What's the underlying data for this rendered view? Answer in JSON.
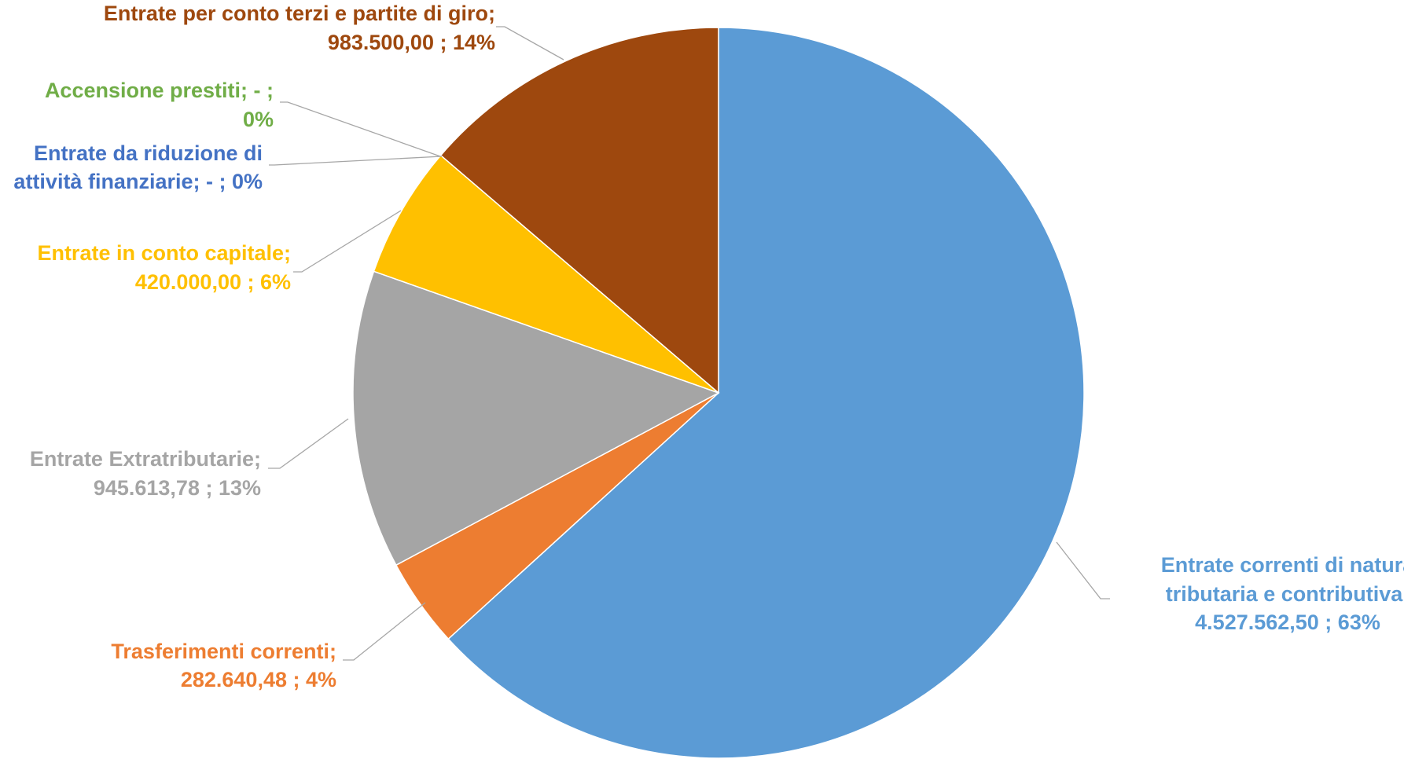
{
  "chart_data": {
    "type": "pie",
    "start_angle_deg": 0,
    "direction": "clockwise",
    "slices": [
      {
        "name": "Entrate correnti di natura tributaria e contributiva",
        "value": 4527562.5,
        "percent": 63,
        "color": "#5B9BD5",
        "label_lines": [
          "Entrate correnti di natura",
          "tributaria e contributiva;",
          "4.527.562,50 ; 63%"
        ]
      },
      {
        "name": "Trasferimenti correnti",
        "value": 282640.48,
        "percent": 4,
        "color": "#ED7D31",
        "label_lines": [
          "Trasferimenti correnti;",
          "282.640,48 ; 4%"
        ]
      },
      {
        "name": "Entrate Extratributarie",
        "value": 945613.78,
        "percent": 13,
        "color": "#A5A5A5",
        "label_lines": [
          "Entrate Extratributarie;",
          "945.613,78 ; 13%"
        ]
      },
      {
        "name": "Entrate in conto capitale",
        "value": 420000.0,
        "percent": 6,
        "color": "#FFC000",
        "label_lines": [
          "Entrate in conto capitale;",
          "420.000,00 ; 6%"
        ]
      },
      {
        "name": "Entrate da riduzione di attività finanziarie",
        "value": 0,
        "percent": 0,
        "color": "#4472C4",
        "label_lines": [
          "Entrate da riduzione di",
          "attività finanziarie;  -   ; 0%"
        ]
      },
      {
        "name": "Accensione prestiti",
        "value": 0,
        "percent": 0,
        "color": "#70AD47",
        "label_lines": [
          "Accensione prestiti;  -   ;",
          "0%"
        ]
      },
      {
        "name": "Entrate per conto terzi e partite di giro",
        "value": 983500.0,
        "percent": 14,
        "color": "#9E480E",
        "label_lines": [
          "Entrate per conto terzi e partite di giro;",
          "983.500,00 ; 14%"
        ]
      }
    ]
  }
}
